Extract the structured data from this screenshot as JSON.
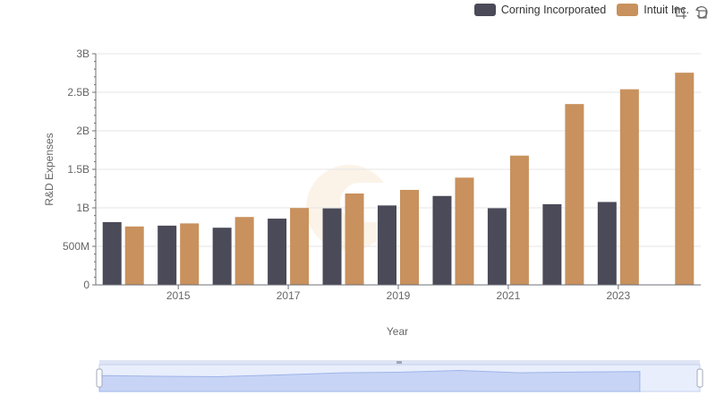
{
  "chart_data": {
    "type": "bar",
    "x": [
      2014,
      2015,
      2016,
      2017,
      2018,
      2019,
      2020,
      2021,
      2022,
      2023,
      2024
    ],
    "x_tick_labels": [
      "2015",
      "2017",
      "2019",
      "2021",
      "2023"
    ],
    "series": [
      {
        "name": "Corning Incorporated",
        "color": "#4a4a58",
        "values": [
          815000000,
          769000000,
          742000000,
          860000000,
          993000000,
          1031000000,
          1154000000,
          995000000,
          1047000000,
          1076000000,
          null
        ]
      },
      {
        "name": "Intuit Inc.",
        "color": "#c8915d",
        "values": [
          758000000,
          798000000,
          881000000,
          998000000,
          1186000000,
          1233000000,
          1392000000,
          1678000000,
          2347000000,
          2539000000,
          2754000000
        ]
      }
    ],
    "xlabel": "Year",
    "ylabel": "R&D Expenses",
    "ylim": [
      0,
      3000000000
    ],
    "y_ticks": [
      {
        "value": 0,
        "label": "0"
      },
      {
        "value": 500000000,
        "label": "500M"
      },
      {
        "value": 1000000000,
        "label": "1B"
      },
      {
        "value": 1500000000,
        "label": "1.5B"
      },
      {
        "value": 2000000000,
        "label": "2B"
      },
      {
        "value": 2500000000,
        "label": "2.5B"
      },
      {
        "value": 3000000000,
        "label": "3B"
      }
    ],
    "grid": true,
    "legend_position": "top-right"
  },
  "toolbox": {
    "icons": [
      "zoom-select-icon",
      "zoom-reset-icon"
    ]
  },
  "data_zoom": {
    "range_percent": [
      0,
      100
    ]
  }
}
